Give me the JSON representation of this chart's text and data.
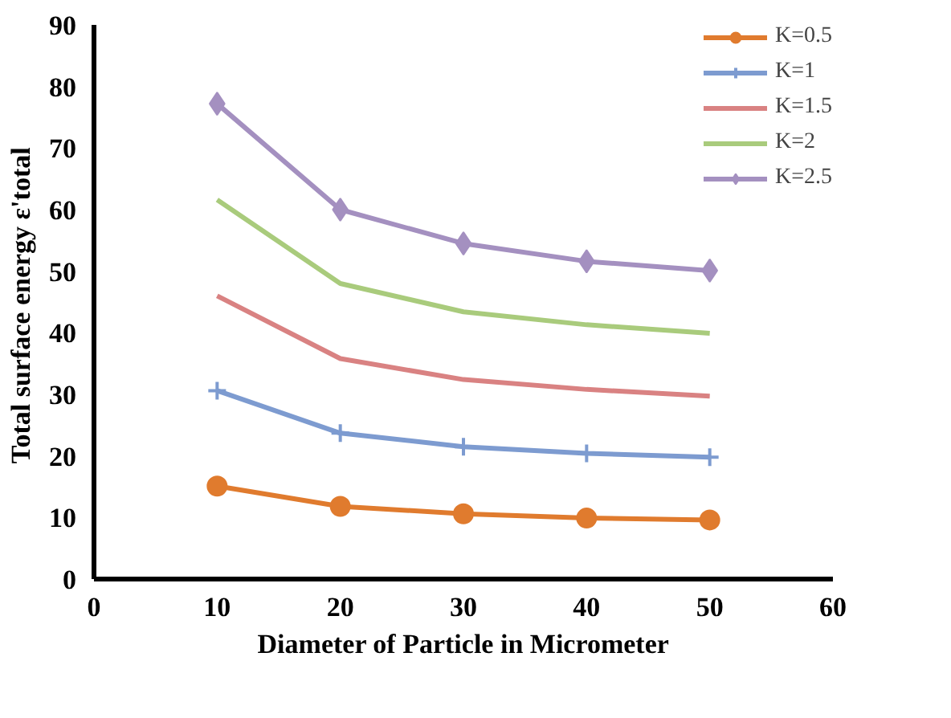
{
  "chart_data": {
    "type": "line",
    "xlabel": "Diameter of Particle in Micrometer",
    "ylabel": "Total surface energy  ε'total",
    "x": [
      10,
      20,
      30,
      40,
      50
    ],
    "series": [
      {
        "name": "K=0.5",
        "color": "#e07b2e",
        "marker": "circle",
        "values": [
          15.1,
          11.8,
          10.6,
          9.9,
          9.6
        ]
      },
      {
        "name": "K=1",
        "color": "#7d9bd0",
        "marker": "cross",
        "values": [
          30.6,
          23.7,
          21.5,
          20.4,
          19.8
        ]
      },
      {
        "name": "K=1.5",
        "color": "#d98282",
        "marker": "none",
        "values": [
          46.0,
          35.8,
          32.4,
          30.8,
          29.7
        ]
      },
      {
        "name": "K=2",
        "color": "#a9cb7c",
        "marker": "none",
        "values": [
          61.6,
          48.0,
          43.4,
          41.3,
          39.9
        ]
      },
      {
        "name": "K=2.5",
        "color": "#a490c0",
        "marker": "diamond",
        "values": [
          77.2,
          60.0,
          54.5,
          51.6,
          50.1
        ]
      }
    ],
    "xlim": [
      0,
      60
    ],
    "xticks": [
      0,
      10,
      20,
      30,
      40,
      50,
      60
    ],
    "ylim": [
      0,
      90
    ],
    "yticks": [
      0,
      10,
      20,
      30,
      40,
      50,
      60,
      70,
      80,
      90
    ],
    "grid": false,
    "legend": "top right",
    "line_style": "solid"
  }
}
